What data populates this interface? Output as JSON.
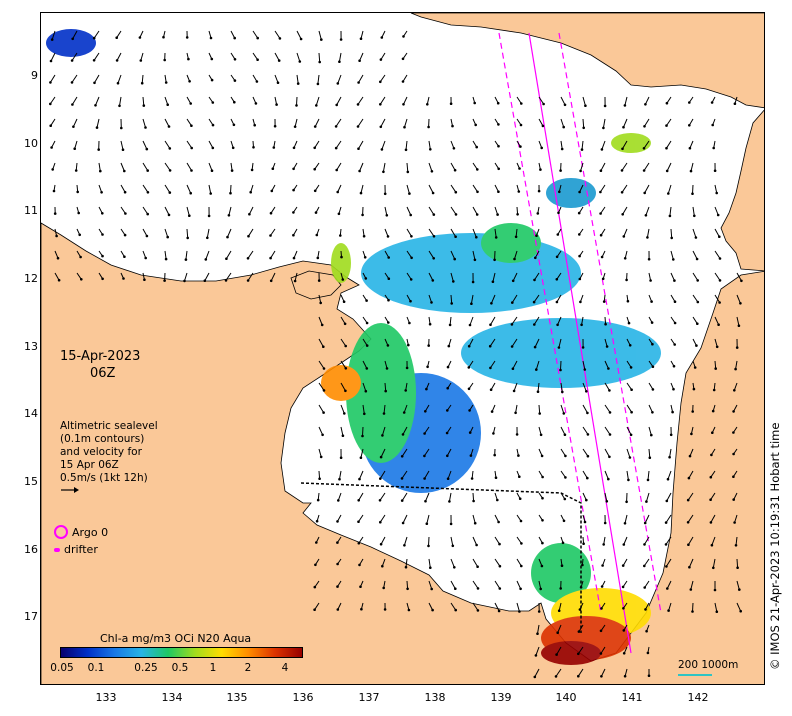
{
  "map": {
    "date": "15-Apr-2023",
    "time": "06Z",
    "legend_lines": [
      "Altimetric sealevel",
      "(0.1m contours)",
      "and velocity for",
      "15 Apr 06Z",
      "0.5m/s (1kt 12h)"
    ],
    "argo_label": "Argo 0",
    "drifter_label": "drifter",
    "colorbar_title": "Chl-a mg/m3 OCi N20 Aqua",
    "colorbar_ticks": [
      "0.05",
      "0.1",
      "0.25",
      "0.5",
      "1",
      "2",
      "4"
    ],
    "scale_label": "200 1000m",
    "copyright": "© IMOS 21-Apr-2023 10:19:31 Hobart time",
    "lat_ticks": [
      "9",
      "10",
      "11",
      "12",
      "13",
      "14",
      "15",
      "16",
      "17"
    ],
    "lon_ticks": [
      "133",
      "134",
      "135",
      "136",
      "137",
      "138",
      "139",
      "140",
      "141",
      "142"
    ],
    "colors": {
      "land": "#fac898",
      "argo": "#ff00ff",
      "colormap": [
        "#08006e",
        "#0030c8",
        "#1a78e6",
        "#28b4e6",
        "#1ec864",
        "#a0dc1e",
        "#ffdc00",
        "#ff8c00",
        "#dc3200",
        "#960000"
      ]
    }
  }
}
